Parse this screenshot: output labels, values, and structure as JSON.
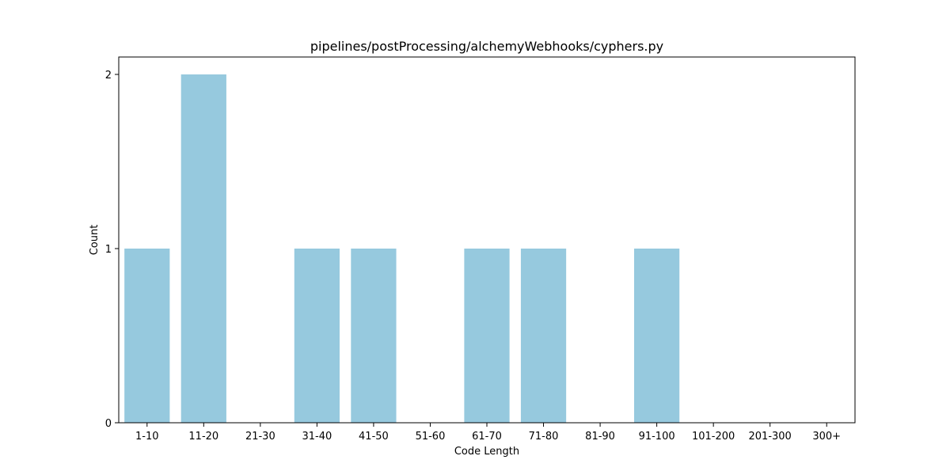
{
  "chart_data": {
    "type": "bar",
    "title": "pipelines/postProcessing/alchemyWebhooks/cyphers.py",
    "xlabel": "Code Length",
    "ylabel": "Count",
    "categories": [
      "1-10",
      "11-20",
      "21-30",
      "31-40",
      "41-50",
      "51-60",
      "61-70",
      "71-80",
      "81-90",
      "91-100",
      "101-200",
      "201-300",
      "300+"
    ],
    "values": [
      1,
      2,
      0,
      1,
      1,
      0,
      1,
      1,
      0,
      1,
      0,
      0,
      0
    ],
    "yticks": [
      0,
      1,
      2
    ],
    "ylim": [
      0,
      2.1
    ],
    "grid": false,
    "bar_color": "#96c9de"
  }
}
